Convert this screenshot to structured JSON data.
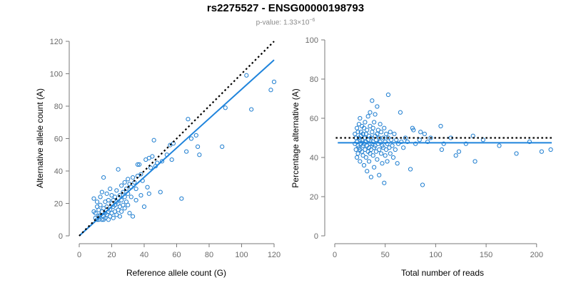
{
  "title": "rs2275527 - ENSG00000198793",
  "subtitle": {
    "prefix": "p-value: 1.33×10",
    "exponent": "−6"
  },
  "chart_data": [
    {
      "type": "scatter",
      "xlabel": "Reference allele count (G)",
      "ylabel": "Alternative allele count (A)",
      "xlim": [
        0,
        120
      ],
      "ylim": [
        0,
        120
      ],
      "xticks": [
        0,
        20,
        40,
        60,
        80,
        100,
        120
      ],
      "yticks": [
        0,
        20,
        40,
        60,
        80,
        100,
        120
      ],
      "reference_line": {
        "style": "dotted",
        "color": "#000000",
        "from": [
          0,
          0
        ],
        "to": [
          120,
          120
        ]
      },
      "fit_line": {
        "style": "solid",
        "color": "#1f84dc",
        "from": [
          0,
          0
        ],
        "to": [
          120,
          108.5
        ]
      },
      "points": [
        [
          9,
          23
        ],
        [
          9,
          15
        ],
        [
          10,
          11
        ],
        [
          10,
          14
        ],
        [
          11,
          10
        ],
        [
          11,
          18
        ],
        [
          11,
          21
        ],
        [
          12,
          12
        ],
        [
          12,
          16
        ],
        [
          12,
          10
        ],
        [
          13,
          13
        ],
        [
          13,
          24
        ],
        [
          13,
          19
        ],
        [
          14,
          10
        ],
        [
          14,
          27
        ],
        [
          14,
          15
        ],
        [
          15,
          12
        ],
        [
          15,
          36
        ],
        [
          15,
          17
        ],
        [
          15,
          10
        ],
        [
          16,
          11
        ],
        [
          16,
          21
        ],
        [
          16,
          14
        ],
        [
          17,
          13
        ],
        [
          17,
          26
        ],
        [
          17,
          18
        ],
        [
          18,
          10
        ],
        [
          18,
          22
        ],
        [
          18,
          15
        ],
        [
          19,
          16
        ],
        [
          19,
          12
        ],
        [
          19,
          29
        ],
        [
          20,
          20
        ],
        [
          20,
          14
        ],
        [
          20,
          25
        ],
        [
          21,
          18
        ],
        [
          21,
          11
        ],
        [
          21,
          22
        ],
        [
          22,
          24
        ],
        [
          22,
          15
        ],
        [
          22,
          19
        ],
        [
          23,
          21
        ],
        [
          23,
          13
        ],
        [
          23,
          28
        ],
        [
          24,
          16
        ],
        [
          24,
          20
        ],
        [
          24,
          41
        ],
        [
          25,
          25
        ],
        [
          25,
          18
        ],
        [
          25,
          12
        ],
        [
          26,
          31
        ],
        [
          26,
          22
        ],
        [
          26,
          15
        ],
        [
          27,
          19
        ],
        [
          27,
          27
        ],
        [
          28,
          24
        ],
        [
          28,
          17
        ],
        [
          28,
          33
        ],
        [
          29,
          21
        ],
        [
          29,
          29
        ],
        [
          30,
          26
        ],
        [
          30,
          35
        ],
        [
          30,
          19
        ],
        [
          31,
          32
        ],
        [
          31,
          14
        ],
        [
          32,
          24
        ],
        [
          32,
          30
        ],
        [
          33,
          36
        ],
        [
          33,
          12
        ],
        [
          34,
          33
        ],
        [
          35,
          22
        ],
        [
          35,
          29
        ],
        [
          36,
          37
        ],
        [
          36,
          44
        ],
        [
          37,
          44
        ],
        [
          38,
          38
        ],
        [
          38,
          25
        ],
        [
          39,
          34
        ],
        [
          40,
          18
        ],
        [
          41,
          47
        ],
        [
          42,
          30
        ],
        [
          43,
          26
        ],
        [
          43,
          48
        ],
        [
          44,
          42
        ],
        [
          45,
          49
        ],
        [
          46,
          59
        ],
        [
          47,
          43
        ],
        [
          48,
          45
        ],
        [
          50,
          27
        ],
        [
          51,
          46
        ],
        [
          54,
          50
        ],
        [
          56,
          56
        ],
        [
          57,
          47
        ],
        [
          58,
          57
        ],
        [
          63,
          23
        ],
        [
          66,
          52
        ],
        [
          67,
          72
        ],
        [
          69,
          60
        ],
        [
          72,
          62
        ],
        [
          73,
          55
        ],
        [
          74,
          50
        ],
        [
          88,
          55
        ],
        [
          90,
          79
        ],
        [
          103,
          99
        ],
        [
          106,
          78
        ],
        [
          118,
          90
        ],
        [
          120,
          95
        ]
      ]
    },
    {
      "type": "scatter",
      "xlabel": "Total number of reads",
      "ylabel": "Percentage alternative (A)",
      "xlim": [
        0,
        215
      ],
      "ylim": [
        0,
        100
      ],
      "xticks": [
        0,
        50,
        100,
        150,
        200
      ],
      "yticks": [
        0,
        20,
        40,
        60,
        80,
        100
      ],
      "reference_line": {
        "style": "dotted",
        "color": "#000000",
        "y": 50
      },
      "fit_line": {
        "style": "solid",
        "color": "#1f84dc",
        "y": 47.5
      },
      "points": [
        [
          20,
          47
        ],
        [
          20,
          52
        ],
        [
          21,
          44
        ],
        [
          21,
          50
        ],
        [
          22,
          55
        ],
        [
          22,
          40
        ],
        [
          22,
          48
        ],
        [
          23,
          46
        ],
        [
          23,
          53
        ],
        [
          23,
          42
        ],
        [
          24,
          50
        ],
        [
          24,
          57
        ],
        [
          24,
          45
        ],
        [
          25,
          49
        ],
        [
          25,
          38
        ],
        [
          25,
          60
        ],
        [
          25,
          44
        ],
        [
          26,
          51
        ],
        [
          26,
          47
        ],
        [
          26,
          53
        ],
        [
          27,
          43
        ],
        [
          27,
          56
        ],
        [
          27,
          49
        ],
        [
          28,
          46
        ],
        [
          28,
          41
        ],
        [
          28,
          52
        ],
        [
          29,
          55
        ],
        [
          29,
          47
        ],
        [
          29,
          36
        ],
        [
          30,
          50
        ],
        [
          30,
          44
        ],
        [
          30,
          58
        ],
        [
          31,
          48
        ],
        [
          31,
          52
        ],
        [
          31,
          40
        ],
        [
          32,
          46
        ],
        [
          32,
          54
        ],
        [
          32,
          33
        ],
        [
          33,
          49
        ],
        [
          33,
          43
        ],
        [
          33,
          61
        ],
        [
          34,
          51
        ],
        [
          34,
          45
        ],
        [
          34,
          38
        ],
        [
          35,
          47
        ],
        [
          35,
          56
        ],
        [
          35,
          42
        ],
        [
          35,
          63
        ],
        [
          36,
          50
        ],
        [
          36,
          44
        ],
        [
          36,
          30
        ],
        [
          37,
          53
        ],
        [
          37,
          47
        ],
        [
          37,
          69
        ],
        [
          38,
          41
        ],
        [
          38,
          55
        ],
        [
          38,
          48
        ],
        [
          39,
          45
        ],
        [
          39,
          58
        ],
        [
          39,
          35
        ],
        [
          40,
          51
        ],
        [
          40,
          46
        ],
        [
          40,
          62
        ],
        [
          41,
          49
        ],
        [
          41,
          43
        ],
        [
          42,
          52
        ],
        [
          42,
          39
        ],
        [
          42,
          66
        ],
        [
          43,
          47
        ],
        [
          43,
          54
        ],
        [
          44,
          44
        ],
        [
          44,
          50
        ],
        [
          44,
          31
        ],
        [
          45,
          48
        ],
        [
          45,
          57
        ],
        [
          46,
          42
        ],
        [
          46,
          53
        ],
        [
          47,
          46
        ],
        [
          47,
          37
        ],
        [
          48,
          50
        ],
        [
          48,
          45
        ],
        [
          49,
          55
        ],
        [
          49,
          27
        ],
        [
          50,
          48
        ],
        [
          50,
          41
        ],
        [
          51,
          52
        ],
        [
          51,
          44
        ],
        [
          52,
          47
        ],
        [
          52,
          38
        ],
        [
          53,
          50
        ],
        [
          53,
          72
        ],
        [
          54,
          45
        ],
        [
          55,
          53
        ],
        [
          55,
          42
        ],
        [
          56,
          49
        ],
        [
          57,
          46
        ],
        [
          58,
          40
        ],
        [
          59,
          52
        ],
        [
          60,
          44
        ],
        [
          61,
          49
        ],
        [
          62,
          37
        ],
        [
          63,
          47
        ],
        [
          65,
          63
        ],
        [
          66,
          48
        ],
        [
          68,
          45
        ],
        [
          70,
          50
        ],
        [
          72,
          48
        ],
        [
          75,
          34
        ],
        [
          77,
          55
        ],
        [
          78,
          54
        ],
        [
          80,
          47
        ],
        [
          84,
          49
        ],
        [
          85,
          53
        ],
        [
          87,
          26
        ],
        [
          89,
          52
        ],
        [
          92,
          48
        ],
        [
          95,
          50
        ],
        [
          105,
          56
        ],
        [
          106,
          44
        ],
        [
          108,
          47
        ],
        [
          115,
          50
        ],
        [
          120,
          41
        ],
        [
          123,
          43
        ],
        [
          130,
          47
        ],
        [
          137,
          51
        ],
        [
          139,
          38
        ],
        [
          147,
          49
        ],
        [
          163,
          46
        ],
        [
          180,
          42
        ],
        [
          193,
          48
        ],
        [
          205,
          43
        ],
        [
          214,
          44
        ]
      ]
    }
  ]
}
